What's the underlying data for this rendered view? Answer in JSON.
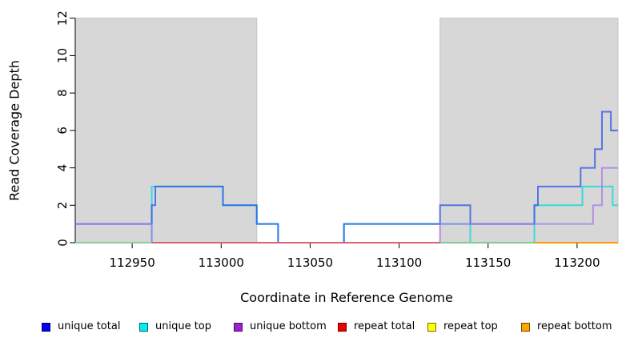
{
  "figure_title": "",
  "axes": {
    "x_label": "Coordinate in Reference Genome",
    "y_label": "Read Coverage Depth"
  },
  "chart_data": {
    "type": "line",
    "subtype": "step-coverage",
    "title": "",
    "xlabel": "Coordinate in Reference Genome",
    "ylabel": "Read Coverage Depth",
    "xlim": [
      112918,
      113223
    ],
    "ylim": [
      0,
      12
    ],
    "x_ticks": [
      112950,
      113000,
      113050,
      113100,
      113150,
      113200
    ],
    "y_ticks": [
      0,
      2,
      4,
      6,
      8,
      10,
      12
    ],
    "grid": false,
    "legend_position": "bottom",
    "shade_color": "#d7d7d7",
    "shade_border_color": "#c3c3c3",
    "shaded_regions": [
      {
        "name": "left-repeat-region",
        "from": 112918,
        "to": 113020
      },
      {
        "name": "right-repeat-region",
        "from": 113123,
        "to": 113223
      }
    ],
    "series": [
      {
        "name": "unique total",
        "line_color": "#2b52e8",
        "legend_color": "#0000ee",
        "steps": [
          [
            112918,
            1
          ],
          [
            112961,
            2
          ],
          [
            112963,
            3
          ],
          [
            113001,
            2
          ],
          [
            113020,
            1
          ],
          [
            113032,
            0
          ],
          [
            113069,
            1
          ],
          [
            113123,
            2
          ],
          [
            113140,
            1
          ],
          [
            113176,
            2
          ],
          [
            113178,
            3
          ],
          [
            113202,
            4
          ],
          [
            113210,
            5
          ],
          [
            113214,
            7
          ],
          [
            113219,
            6
          ]
        ]
      },
      {
        "name": "unique top",
        "line_color": "#00dcdc",
        "legend_color": "#00eeee",
        "steps": [
          [
            112918,
            0
          ],
          [
            112961,
            3
          ],
          [
            113001,
            2
          ],
          [
            113020,
            1
          ],
          [
            113032,
            0
          ],
          [
            113069,
            1
          ],
          [
            113140,
            0
          ],
          [
            113176,
            2
          ],
          [
            113203,
            3
          ],
          [
            113220,
            2
          ]
        ]
      },
      {
        "name": "unique bottom",
        "line_color": "#a478e8",
        "legend_color": "#9922cc",
        "steps": [
          [
            112918,
            1
          ],
          [
            112961,
            0
          ],
          [
            113123,
            1
          ],
          [
            113209,
            2
          ],
          [
            113214,
            4
          ]
        ]
      },
      {
        "name": "repeat total",
        "line_color": "#dc143c",
        "legend_color": "#ee0000",
        "steps": [
          [
            112918,
            0
          ]
        ]
      },
      {
        "name": "repeat top",
        "line_color": "#ffee00",
        "legend_color": "#ffff00",
        "steps": [
          [
            112918,
            0
          ]
        ]
      },
      {
        "name": "repeat bottom",
        "line_color": "#ff9900",
        "legend_color": "#ffa500",
        "steps": [
          [
            112918,
            0
          ]
        ]
      }
    ],
    "draw_order": [
      "unique top",
      "unique total",
      "unique bottom"
    ],
    "baseline_segments": [
      {
        "from": 112918,
        "to": 112961,
        "color": "#8fce8f"
      },
      {
        "from": 112961,
        "to": 113123,
        "color": "#d86078"
      },
      {
        "from": 113123,
        "to": 113176,
        "color": "#82c98f"
      },
      {
        "from": 113176,
        "to": 113223,
        "color": "#ff9800"
      }
    ],
    "legend": [
      {
        "label": "unique total",
        "color": "#0000ee"
      },
      {
        "label": "unique top",
        "color": "#00eeee"
      },
      {
        "label": "unique bottom",
        "color": "#9922cc"
      },
      {
        "label": "repeat total",
        "color": "#ee0000"
      },
      {
        "label": "repeat top",
        "color": "#ffff00"
      },
      {
        "label": "repeat bottom",
        "color": "#ffa500"
      }
    ]
  }
}
